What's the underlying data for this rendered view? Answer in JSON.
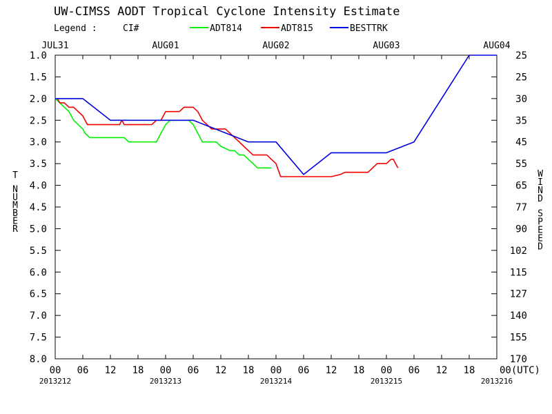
{
  "chart_data": {
    "type": "line",
    "title": "UW-CIMSS AODT Tropical Cyclone Intensity Estimate",
    "legend": {
      "label": "Legend :",
      "quantity": "CI#",
      "placement": "top",
      "entries": [
        {
          "name": "ADT814",
          "color": "#00ee00"
        },
        {
          "name": "ADT815",
          "color": "#ee0000"
        },
        {
          "name": "BESTTRK",
          "color": "#0000dd"
        }
      ]
    },
    "left_axis": {
      "label": "T NUMBER",
      "range": [
        1.0,
        8.0
      ],
      "reversed": true,
      "ticks": [
        "1.0",
        "1.5",
        "2.0",
        "2.5",
        "3.0",
        "3.5",
        "4.0",
        "4.5",
        "5.0",
        "5.5",
        "6.0",
        "6.5",
        "7.0",
        "7.5",
        "8.0"
      ]
    },
    "right_axis": {
      "label": "WIND SPEED",
      "ticks": [
        "25",
        "25",
        "30",
        "35",
        "45",
        "55",
        "65",
        "77",
        "90",
        "102",
        "115",
        "127",
        "140",
        "155",
        "170"
      ]
    },
    "x_axis": {
      "unit_hours_since_start": true,
      "range_hours": [
        0,
        96
      ],
      "top_date_labels": [
        {
          "label": "JUL31",
          "hour": 0
        },
        {
          "label": "AUG01",
          "hour": 24
        },
        {
          "label": "AUG02",
          "hour": 48
        },
        {
          "label": "AUG03",
          "hour": 72
        },
        {
          "label": "AUG04",
          "hour": 96
        }
      ],
      "hour_ticks": [
        "00",
        "06",
        "12",
        "18",
        "00",
        "06",
        "12",
        "18",
        "00",
        "06",
        "12",
        "18",
        "00",
        "06",
        "12",
        "18",
        "00(UTC)"
      ],
      "julian_labels": [
        {
          "label": "2013212",
          "hour": 0
        },
        {
          "label": "2013213",
          "hour": 24
        },
        {
          "label": "2013214",
          "hour": 48
        },
        {
          "label": "2013215",
          "hour": 72
        },
        {
          "label": "2013216",
          "hour": 96
        }
      ]
    },
    "grid": false,
    "series": [
      {
        "name": "ADT814",
        "color": "#00ee00",
        "points": [
          [
            0,
            2.0
          ],
          [
            1.0,
            2.1
          ],
          [
            2.0,
            2.2
          ],
          [
            3.0,
            2.3
          ],
          [
            4.0,
            2.5
          ],
          [
            5.0,
            2.6
          ],
          [
            6.0,
            2.7
          ],
          [
            6.5,
            2.8
          ],
          [
            7.5,
            2.9
          ],
          [
            10,
            2.9
          ],
          [
            15,
            2.9
          ],
          [
            15.5,
            2.95
          ],
          [
            16,
            3.0
          ],
          [
            20,
            3.0
          ],
          [
            22,
            3.0
          ],
          [
            22.5,
            2.9
          ],
          [
            23,
            2.8
          ],
          [
            23.5,
            2.7
          ],
          [
            24,
            2.6
          ],
          [
            25,
            2.5
          ],
          [
            29,
            2.5
          ],
          [
            30,
            2.6
          ],
          [
            31,
            2.8
          ],
          [
            32,
            3.0
          ],
          [
            33,
            3.0
          ],
          [
            35,
            3.0
          ],
          [
            36,
            3.1
          ],
          [
            38,
            3.2
          ],
          [
            39,
            3.2
          ],
          [
            40,
            3.3
          ],
          [
            41,
            3.3
          ],
          [
            42,
            3.4
          ],
          [
            43,
            3.5
          ],
          [
            44,
            3.6
          ],
          [
            47,
            3.6
          ]
        ]
      },
      {
        "name": "ADT815",
        "color": "#ee0000",
        "points": [
          [
            0.5,
            2.0
          ],
          [
            1.0,
            2.1
          ],
          [
            2.0,
            2.1
          ],
          [
            3.0,
            2.2
          ],
          [
            4.0,
            2.2
          ],
          [
            5.0,
            2.3
          ],
          [
            6.0,
            2.4
          ],
          [
            6.5,
            2.5
          ],
          [
            7.0,
            2.6
          ],
          [
            10,
            2.6
          ],
          [
            14,
            2.6
          ],
          [
            14.5,
            2.5
          ],
          [
            15,
            2.6
          ],
          [
            21,
            2.6
          ],
          [
            22,
            2.5
          ],
          [
            23,
            2.5
          ],
          [
            23.5,
            2.4
          ],
          [
            24,
            2.3
          ],
          [
            27,
            2.3
          ],
          [
            28,
            2.2
          ],
          [
            30,
            2.2
          ],
          [
            31,
            2.3
          ],
          [
            32,
            2.5
          ],
          [
            33,
            2.6
          ],
          [
            34,
            2.7
          ],
          [
            37,
            2.7
          ],
          [
            38,
            2.8
          ],
          [
            39,
            2.9
          ],
          [
            40,
            3.0
          ],
          [
            41,
            3.1
          ],
          [
            42,
            3.2
          ],
          [
            43,
            3.3
          ],
          [
            46,
            3.3
          ],
          [
            47,
            3.4
          ],
          [
            48,
            3.5
          ],
          [
            49,
            3.8
          ],
          [
            60,
            3.8
          ],
          [
            62,
            3.75
          ],
          [
            63,
            3.7
          ],
          [
            68,
            3.7
          ],
          [
            69,
            3.6
          ],
          [
            70,
            3.5
          ],
          [
            72,
            3.5
          ],
          [
            73,
            3.4
          ],
          [
            73.5,
            3.4
          ],
          [
            74.5,
            3.6
          ]
        ]
      },
      {
        "name": "BESTTRK",
        "color": "#0000dd",
        "points": [
          [
            0,
            2.0
          ],
          [
            6,
            2.0
          ],
          [
            12,
            2.5
          ],
          [
            18,
            2.5
          ],
          [
            24,
            2.5
          ],
          [
            30,
            2.5
          ],
          [
            36,
            2.75
          ],
          [
            42,
            3.0
          ],
          [
            48,
            3.0
          ],
          [
            54,
            3.75
          ],
          [
            60,
            3.25
          ],
          [
            66,
            3.25
          ],
          [
            72,
            3.25
          ],
          [
            78,
            3.0
          ],
          [
            90,
            1.0
          ],
          [
            96,
            1.0
          ]
        ]
      }
    ]
  }
}
